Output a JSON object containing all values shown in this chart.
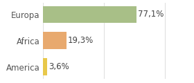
{
  "categories": [
    "America",
    "Africa",
    "Europa"
  ],
  "values": [
    3.6,
    19.3,
    77.1
  ],
  "bar_colors": [
    "#e8c84a",
    "#e8a96e",
    "#a8bf87"
  ],
  "labels": [
    "3,6%",
    "19,3%",
    "77,1%"
  ],
  "xlim": [
    0,
    105
  ],
  "background_color": "#ffffff",
  "label_fontsize": 8.5,
  "tick_fontsize": 8.5,
  "bar_height": 0.65,
  "grid_color": "#e0e0e0",
  "text_color": "#444444",
  "tick_color": "#555555"
}
